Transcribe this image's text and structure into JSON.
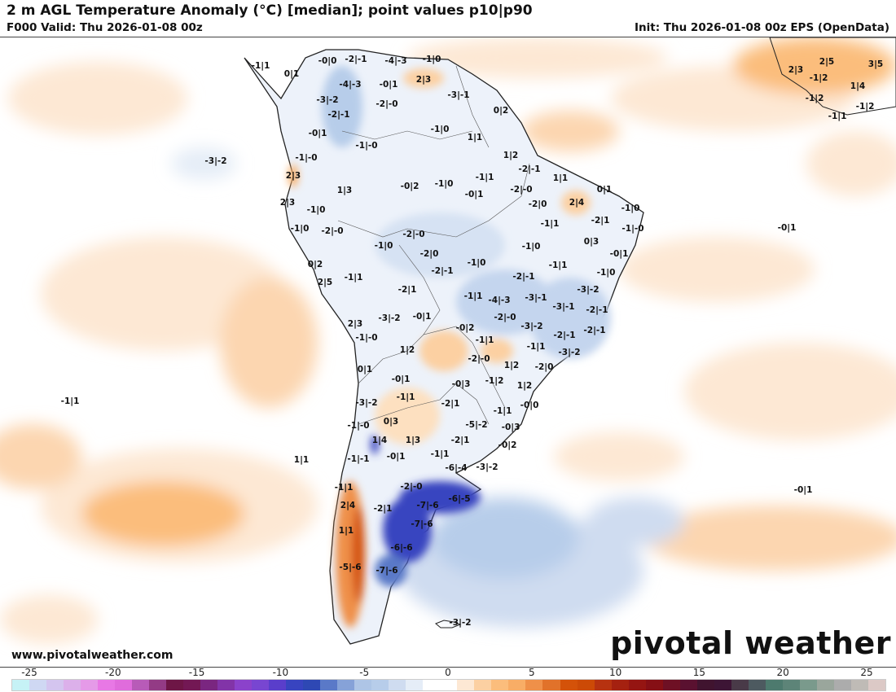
{
  "header": {
    "title": "2 m AGL Temperature Anomaly (°C) [median]; point values p10|p90",
    "valid": "F000 Valid: Thu 2026-01-08 00z",
    "init": "Init: Thu 2026-01-08 00z EPS (OpenData)"
  },
  "footer": {
    "site": "www.pivotalweather.com",
    "logo": "pivotal weather"
  },
  "colorbar": {
    "ticks": [
      "-25",
      "-20",
      "-15",
      "-10",
      "-5",
      "0",
      "5",
      "10",
      "15",
      "20",
      "25"
    ],
    "colors": [
      "#c6f2f6",
      "#cfd8f3",
      "#d4c5ef",
      "#dcb0ea",
      "#e59ae8",
      "#e878e5",
      "#e06cdc",
      "#b85bb8",
      "#933b85",
      "#6e1646",
      "#731854",
      "#7a2680",
      "#8234a8",
      "#8b42cb",
      "#7846d1",
      "#5a3ecb",
      "#3844c0",
      "#2e48b4",
      "#5a79c8",
      "#86a2d8",
      "#aec5e6",
      "#b7cdea",
      "#cfdcf0",
      "#e5edf7",
      "#ffffff",
      "#ffffff",
      "#fde8d4",
      "#fcd0a2",
      "#fbbd7c",
      "#f8ad66",
      "#ef9049",
      "#e1722a",
      "#d45209",
      "#cc4a06",
      "#b73210",
      "#a52110",
      "#951512",
      "#860f15",
      "#6e1024",
      "#5a1130",
      "#40142f",
      "#3d1535",
      "#493a48",
      "#4d5a60",
      "#4d7a6e",
      "#5d8478",
      "#7a9a8c",
      "#9aa69c",
      "#acacac",
      "#bfbbb6",
      "#dcc9c6"
    ]
  },
  "points": {
    "land": [
      "-1|1",
      "-0|0",
      "-2|-1",
      "-4|-3",
      "-1|0",
      "0|1",
      "-4|-3",
      "-0|1",
      "2|3",
      "-3|-2",
      "-3|-1",
      "-2|-0",
      "0|2",
      "-2|-1",
      "-0|1",
      "-1|0",
      "-1|-0",
      "1|1",
      "-1|-0",
      "1|2",
      "-2|-1",
      "2|3",
      "1|3",
      "-0|2",
      "-1|0",
      "-1|1",
      "-0|1",
      "-2|-0",
      "1|1",
      "0|1",
      "2|3",
      "-1|0",
      "-1|0",
      "-2|-0",
      "-2|-0",
      "-1|0",
      "-2|0",
      "-1|0",
      "0|2",
      "-2|-1",
      "2|5",
      "-1|1",
      "-2|1",
      "-1|1",
      "-4|-3",
      "2|3",
      "-3|-2",
      "-0|1",
      "-0|2",
      "-2|-0",
      "-1|-0",
      "1|2",
      "-1|1",
      "-2|-0",
      "0|1",
      "1|2",
      "-0|1",
      "-0|3",
      "-1|2",
      "1|2",
      "-2|0",
      "-2|0",
      "2|4",
      "-1|0",
      "-1|1",
      "-2|1",
      "-1|-0",
      "0|3",
      "-0|1",
      "-1|0",
      "-1|1",
      "-1|0",
      "-2|-1",
      "-3|-1",
      "-3|-2",
      "-3|-1",
      "-2|-1",
      "-2|-1",
      "-3|-2",
      "-2|-1",
      "-3|-2",
      "-1|1",
      "-1|1",
      "-3|-2",
      "-2|1",
      "-0|0",
      "-1|1",
      "0|3",
      "-1|-0",
      "-5|-2",
      "-0|3",
      "1|4",
      "1|3",
      "-2|1",
      "-0|2",
      "-1|-1",
      "-0|1",
      "-1|1",
      "-6|-4",
      "-3|-2",
      "-1|1",
      "-2|-0",
      "2|4",
      "-2|1",
      "-7|-6",
      "-6|-5",
      "-7|-6",
      "1|1",
      "-6|-6",
      "-5|-6",
      "-7|-6",
      "-3|-2"
    ],
    "ocean": [
      "-3|-2",
      "-1|1",
      "1|1",
      "-0|1",
      "-0|1"
    ],
    "africa": [
      "2|3",
      "2|5",
      "3|5",
      "-1|2",
      "1|4",
      "-1|2",
      "-1|2",
      "-1|1"
    ]
  }
}
